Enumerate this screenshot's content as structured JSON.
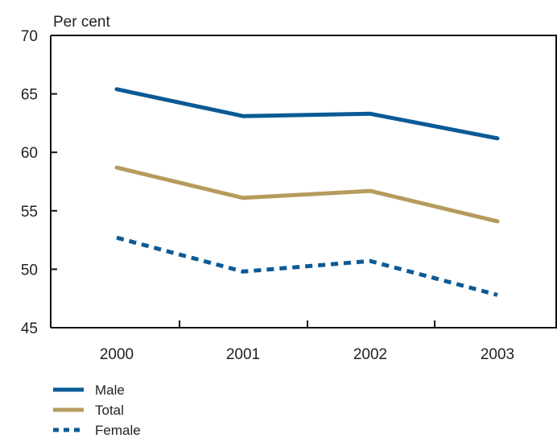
{
  "chart_data": {
    "type": "line",
    "title": "",
    "xlabel": "",
    "ylabel": "Per cent",
    "categories": [
      "2000",
      "2001",
      "2002",
      "2003"
    ],
    "ylim": [
      45,
      70
    ],
    "yticks": [
      "45",
      "50",
      "55",
      "60",
      "65",
      "70"
    ],
    "grid": false,
    "legend_position": "bottom-left",
    "series": [
      {
        "name": "Male",
        "values": [
          65.4,
          63.1,
          63.3,
          61.2
        ],
        "color": "#0a5a96",
        "style": "solid"
      },
      {
        "name": "Total",
        "values": [
          58.7,
          56.1,
          56.7,
          54.1
        ],
        "color": "#b59b5d",
        "style": "solid"
      },
      {
        "name": "Female",
        "values": [
          52.7,
          49.8,
          50.7,
          47.8
        ],
        "color": "#0a5a96",
        "style": "dashed"
      }
    ]
  }
}
